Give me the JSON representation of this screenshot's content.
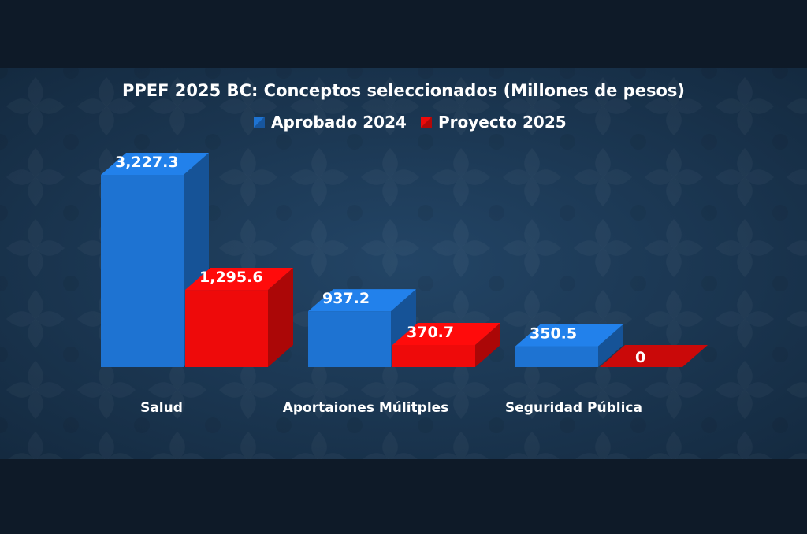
{
  "chart_data": {
    "type": "bar",
    "title": "PPEF 2025 BC: Conceptos seleccionados (Millones de pesos)",
    "categories": [
      "Salud",
      "Aportaiones Múlitples",
      "Seguridad Pública"
    ],
    "series": [
      {
        "name": "Aprobado  2024",
        "values": [
          3227.3,
          937.2,
          350.5
        ],
        "labels": [
          "3,227.3",
          "937.2",
          "350.5"
        ],
        "color": "#1e73d2"
      },
      {
        "name": "Proyecto 2025",
        "values": [
          1295.6,
          370.7,
          0
        ],
        "labels": [
          "1,295.6",
          "370.7",
          "0"
        ],
        "color": "#ee0a0a"
      }
    ],
    "legend_position": "top",
    "grid": false,
    "ylim": [
      0,
      3300
    ]
  },
  "colors": {
    "page_background": "#0e1a28",
    "plot_background": "#1d3a57",
    "text": "#ffffff"
  }
}
